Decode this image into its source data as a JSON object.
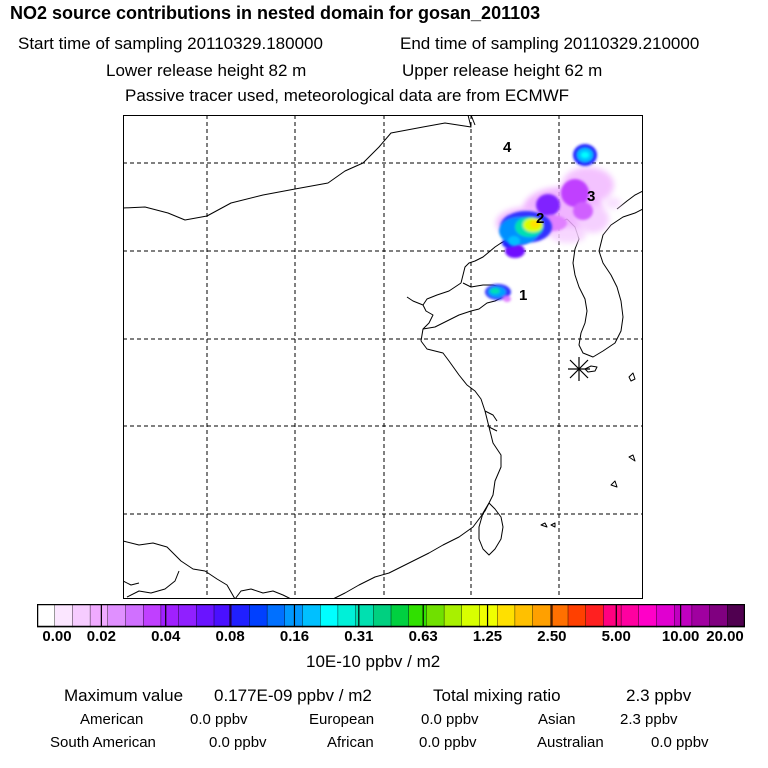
{
  "header": {
    "title": "NO2 source contributions in nested domain for gosan_201103",
    "start_label": "Start time of sampling 20110329.180000",
    "end_label": "End time of sampling 20110329.210000",
    "lower_label": "Lower release height   82 m",
    "upper_label": "Upper release height   62 m",
    "passive_label": "Passive tracer used, meteorological data are from ECMWF"
  },
  "map": {
    "site_marker": "receptor-star-icon",
    "source_labels": [
      "1",
      "2",
      "3",
      "4"
    ]
  },
  "colorbar": {
    "ticks": [
      "0.00",
      "0.02",
      "0.04",
      "0.08",
      "0.16",
      "0.31",
      "0.63",
      "1.25",
      "2.50",
      "5.00",
      "10.00",
      "20.00"
    ],
    "unit": "10E-10 ppbv / m2",
    "colors": [
      "#ffffff",
      "#fbe6ff",
      "#f6ccff",
      "#f0aaff",
      "#e090ff",
      "#d070ff",
      "#c040ff",
      "#a020ff",
      "#9020ff",
      "#6a14ff",
      "#4a10ff",
      "#2020ff",
      "#0040ff",
      "#0070ff",
      "#0098ff",
      "#00c0ff",
      "#00ffff",
      "#00f0d8",
      "#00e0b0",
      "#00d080",
      "#00d040",
      "#30e000",
      "#70e000",
      "#a8f000",
      "#d8ff00",
      "#f0ff00",
      "#ffe000",
      "#ffc000",
      "#ffa000",
      "#ff7000",
      "#ff4000",
      "#ff2020",
      "#ff0080",
      "#ff00a0",
      "#ff00c8",
      "#e000d0",
      "#c000c0",
      "#a000a0",
      "#800080",
      "#500050"
    ]
  },
  "summary": {
    "max_label": "Maximum value",
    "max_value": "0.177E-09 ppbv / m2",
    "total_label": "Total mixing ratio",
    "total_value": "2.3 ppbv",
    "regions": [
      {
        "name": "American",
        "value": "0.0 ppbv"
      },
      {
        "name": "European",
        "value": "0.0 ppbv"
      },
      {
        "name": "Asian",
        "value": "2.3 ppbv"
      },
      {
        "name": "South American",
        "value": "0.0 ppbv"
      },
      {
        "name": "African",
        "value": "0.0 ppbv"
      },
      {
        "name": "Australian",
        "value": "0.0 ppbv"
      }
    ]
  }
}
